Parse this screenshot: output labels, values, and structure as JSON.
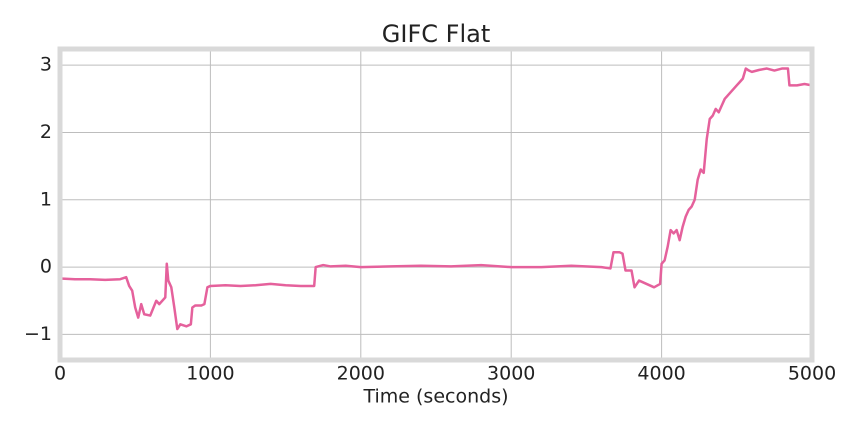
{
  "chart_data": {
    "type": "line",
    "title": "GIFC Flat",
    "x_label": "Time (seconds)",
    "x": [
      0,
      100,
      200,
      300,
      400,
      440,
      460,
      480,
      500,
      520,
      540,
      560,
      600,
      640,
      660,
      700,
      710,
      720,
      740,
      760,
      780,
      800,
      840,
      870,
      880,
      900,
      940,
      960,
      980,
      1000,
      1100,
      1200,
      1300,
      1400,
      1500,
      1600,
      1690,
      1700,
      1750,
      1800,
      1900,
      2000,
      2200,
      2400,
      2600,
      2800,
      3000,
      3200,
      3400,
      3600,
      3660,
      3680,
      3720,
      3740,
      3760,
      3800,
      3820,
      3850,
      3900,
      3950,
      3990,
      4000,
      4020,
      4040,
      4060,
      4080,
      4100,
      4120,
      4140,
      4160,
      4180,
      4200,
      4220,
      4240,
      4260,
      4280,
      4300,
      4320,
      4340,
      4360,
      4380,
      4400,
      4420,
      4440,
      4460,
      4480,
      4500,
      4520,
      4540,
      4560,
      4580,
      4600,
      4650,
      4700,
      4750,
      4800,
      4840,
      4850,
      4900,
      4950,
      5000
    ],
    "values": [
      -0.17,
      -0.18,
      -0.18,
      -0.19,
      -0.18,
      -0.15,
      -0.28,
      -0.35,
      -0.6,
      -0.75,
      -0.55,
      -0.7,
      -0.72,
      -0.5,
      -0.55,
      -0.45,
      0.05,
      -0.2,
      -0.3,
      -0.6,
      -0.92,
      -0.85,
      -0.88,
      -0.85,
      -0.6,
      -0.57,
      -0.57,
      -0.55,
      -0.3,
      -0.28,
      -0.27,
      -0.28,
      -0.27,
      -0.25,
      -0.27,
      -0.28,
      -0.28,
      0.0,
      0.03,
      0.01,
      0.02,
      0.0,
      0.01,
      0.02,
      0.01,
      0.03,
      0.0,
      0.0,
      0.02,
      0.0,
      -0.02,
      0.22,
      0.22,
      0.2,
      -0.05,
      -0.05,
      -0.3,
      -0.2,
      -0.25,
      -0.3,
      -0.25,
      0.05,
      0.1,
      0.3,
      0.55,
      0.5,
      0.55,
      0.4,
      0.6,
      0.75,
      0.85,
      0.9,
      1.0,
      1.3,
      1.45,
      1.4,
      1.9,
      2.2,
      2.25,
      2.35,
      2.3,
      2.4,
      2.5,
      2.55,
      2.6,
      2.65,
      2.7,
      2.75,
      2.8,
      2.95,
      2.92,
      2.9,
      2.93,
      2.95,
      2.92,
      2.95,
      2.95,
      2.7,
      2.7,
      2.72,
      2.7
    ],
    "color": "#e5619c",
    "xlim": [
      0,
      5000
    ],
    "xticks": [
      0,
      1000,
      2000,
      3000,
      4000,
      5000
    ],
    "ylim": [
      -1.38,
      3.24
    ],
    "yticks": [
      {
        "value": -1,
        "label": "−1"
      },
      0,
      1,
      2,
      3
    ],
    "grid": true
  }
}
